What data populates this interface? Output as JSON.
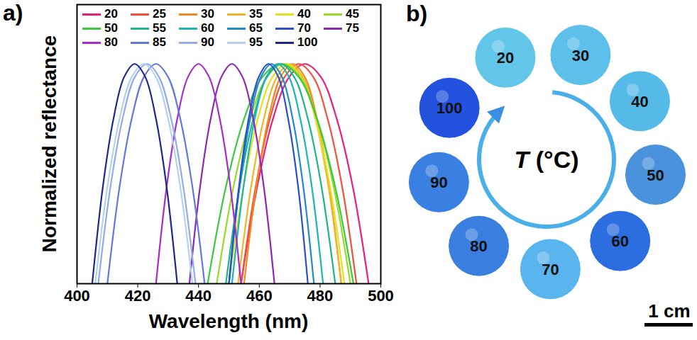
{
  "panel_labels": [
    "a)",
    "b)"
  ],
  "chart_data": {
    "type": "line",
    "x_label": "Wavelength (nm)",
    "y_label": "Normalized reflectance",
    "xlim": [
      400,
      500
    ],
    "xticks": [
      400,
      420,
      440,
      460,
      480,
      500
    ],
    "ylim": [
      0,
      1.27
    ],
    "yticks": [],
    "tick_labels": "x",
    "grid": false,
    "legend": "top",
    "series": [
      {
        "name": "20",
        "color": "#e8207c",
        "x": [
          454,
          459.3,
          464.5,
          469.8,
          475,
          480.3,
          485.5,
          490.8,
          496
        ],
        "values": [
          0,
          0.44,
          0.75,
          0.94,
          1,
          0.94,
          0.75,
          0.44,
          0
        ]
      },
      {
        "name": "25",
        "color": "#f0503c",
        "x": [
          454,
          458.8,
          463.5,
          468.3,
          473,
          477.8,
          482.5,
          487.3,
          492
        ],
        "values": [
          0,
          0.44,
          0.75,
          0.94,
          1,
          0.94,
          0.75,
          0.44,
          0
        ]
      },
      {
        "name": "30",
        "color": "#f08a1e",
        "x": [
          455,
          459,
          463,
          467,
          471,
          475,
          479,
          483,
          487
        ],
        "values": [
          0,
          0.44,
          0.75,
          0.94,
          1,
          0.94,
          0.75,
          0.44,
          0
        ]
      },
      {
        "name": "35",
        "color": "#f0b42a",
        "x": [
          453,
          457.3,
          461.5,
          465.8,
          470,
          474.3,
          478.5,
          482.8,
          487
        ],
        "values": [
          0,
          0.44,
          0.75,
          0.94,
          1,
          0.94,
          0.75,
          0.44,
          0
        ]
      },
      {
        "name": "40",
        "color": "#e2e21e",
        "x": [
          450,
          454.8,
          459.5,
          464.3,
          469,
          473.8,
          478.5,
          483.3,
          488
        ],
        "values": [
          0,
          0.44,
          0.75,
          0.94,
          1,
          0.94,
          0.75,
          0.44,
          0
        ]
      },
      {
        "name": "45",
        "color": "#9ad82a",
        "x": [
          446,
          451.5,
          457,
          462.5,
          468,
          473.5,
          479,
          484.5,
          490
        ],
        "values": [
          0,
          0.44,
          0.75,
          0.94,
          1,
          0.94,
          0.75,
          0.44,
          0
        ]
      },
      {
        "name": "50",
        "color": "#3cc83c",
        "x": [
          443,
          449,
          455,
          461,
          467,
          473,
          479,
          485,
          491
        ],
        "values": [
          0,
          0.44,
          0.75,
          0.94,
          1,
          0.94,
          0.75,
          0.44,
          0
        ]
      },
      {
        "name": "55",
        "color": "#1eb48c",
        "x": [
          449,
          453.5,
          458,
          462.5,
          467,
          471.5,
          476,
          480.5,
          485
        ],
        "values": [
          0,
          0.44,
          0.75,
          0.94,
          1,
          0.94,
          0.75,
          0.44,
          0
        ]
      },
      {
        "name": "60",
        "color": "#1eb4b4",
        "x": [
          451,
          454.8,
          458.5,
          462.3,
          466,
          469.8,
          473.5,
          477.3,
          481
        ],
        "values": [
          0,
          0.44,
          0.75,
          0.94,
          1,
          0.94,
          0.75,
          0.44,
          0
        ]
      },
      {
        "name": "65",
        "color": "#1e8cc8",
        "x": [
          450,
          453.5,
          457,
          460.5,
          464,
          467.5,
          471,
          474.5,
          478
        ],
        "values": [
          0,
          0.44,
          0.75,
          0.94,
          1,
          0.94,
          0.75,
          0.44,
          0
        ]
      },
      {
        "name": "70",
        "color": "#2850c8",
        "x": [
          450,
          453.3,
          456.5,
          459.8,
          463,
          466.3,
          469.5,
          472.8,
          476
        ],
        "values": [
          0,
          0.44,
          0.75,
          0.94,
          1,
          0.94,
          0.75,
          0.44,
          0
        ]
      },
      {
        "name": "75",
        "color": "#8c28b4",
        "x": [
          437,
          440.5,
          444,
          447.5,
          451,
          454.5,
          458,
          461.5,
          465
        ],
        "values": [
          0,
          0.44,
          0.75,
          0.94,
          1,
          0.94,
          0.75,
          0.44,
          0
        ]
      },
      {
        "name": "80",
        "color": "#a82cc8",
        "x": [
          426,
          429.5,
          433,
          436.5,
          440,
          443.5,
          447,
          450.5,
          454
        ],
        "values": [
          0,
          0.44,
          0.75,
          0.94,
          1,
          0.94,
          0.75,
          0.44,
          0
        ]
      },
      {
        "name": "85",
        "color": "#6478dc",
        "x": [
          410,
          414,
          418,
          422,
          426,
          430,
          434,
          438,
          442
        ],
        "values": [
          0,
          0.44,
          0.75,
          0.94,
          1,
          0.94,
          0.75,
          0.44,
          0
        ]
      },
      {
        "name": "90",
        "color": "#96aae6",
        "x": [
          407,
          411,
          415,
          419,
          423,
          427,
          431,
          435,
          439
        ],
        "values": [
          0,
          0.44,
          0.75,
          0.94,
          1,
          0.94,
          0.75,
          0.44,
          0
        ]
      },
      {
        "name": "95",
        "color": "#b4d2f0",
        "x": [
          406,
          410,
          414,
          418,
          422,
          426,
          430,
          434,
          438
        ],
        "values": [
          0,
          0.44,
          0.75,
          0.94,
          1,
          0.94,
          0.75,
          0.44,
          0
        ]
      },
      {
        "name": "100",
        "color": "#1e288c",
        "x": [
          405,
          408.5,
          412,
          415.5,
          419,
          422.5,
          426,
          429.5,
          433
        ],
        "values": [
          0,
          0.44,
          0.75,
          0.94,
          1,
          0.94,
          0.75,
          0.44,
          0
        ]
      }
    ]
  },
  "image": {
    "center_label": "T (°C)",
    "scale_bar": "1 cm",
    "temperatures": [
      20,
      30,
      40,
      50,
      60,
      70,
      80,
      90,
      100
    ],
    "colors": [
      "#62c6ea",
      "#5cc0ea",
      "#56bae8",
      "#4a92dc",
      "#2c6ee0",
      "#5ab4ee",
      "#3a7ee0",
      "#3a80e2",
      "#2252de"
    ]
  }
}
